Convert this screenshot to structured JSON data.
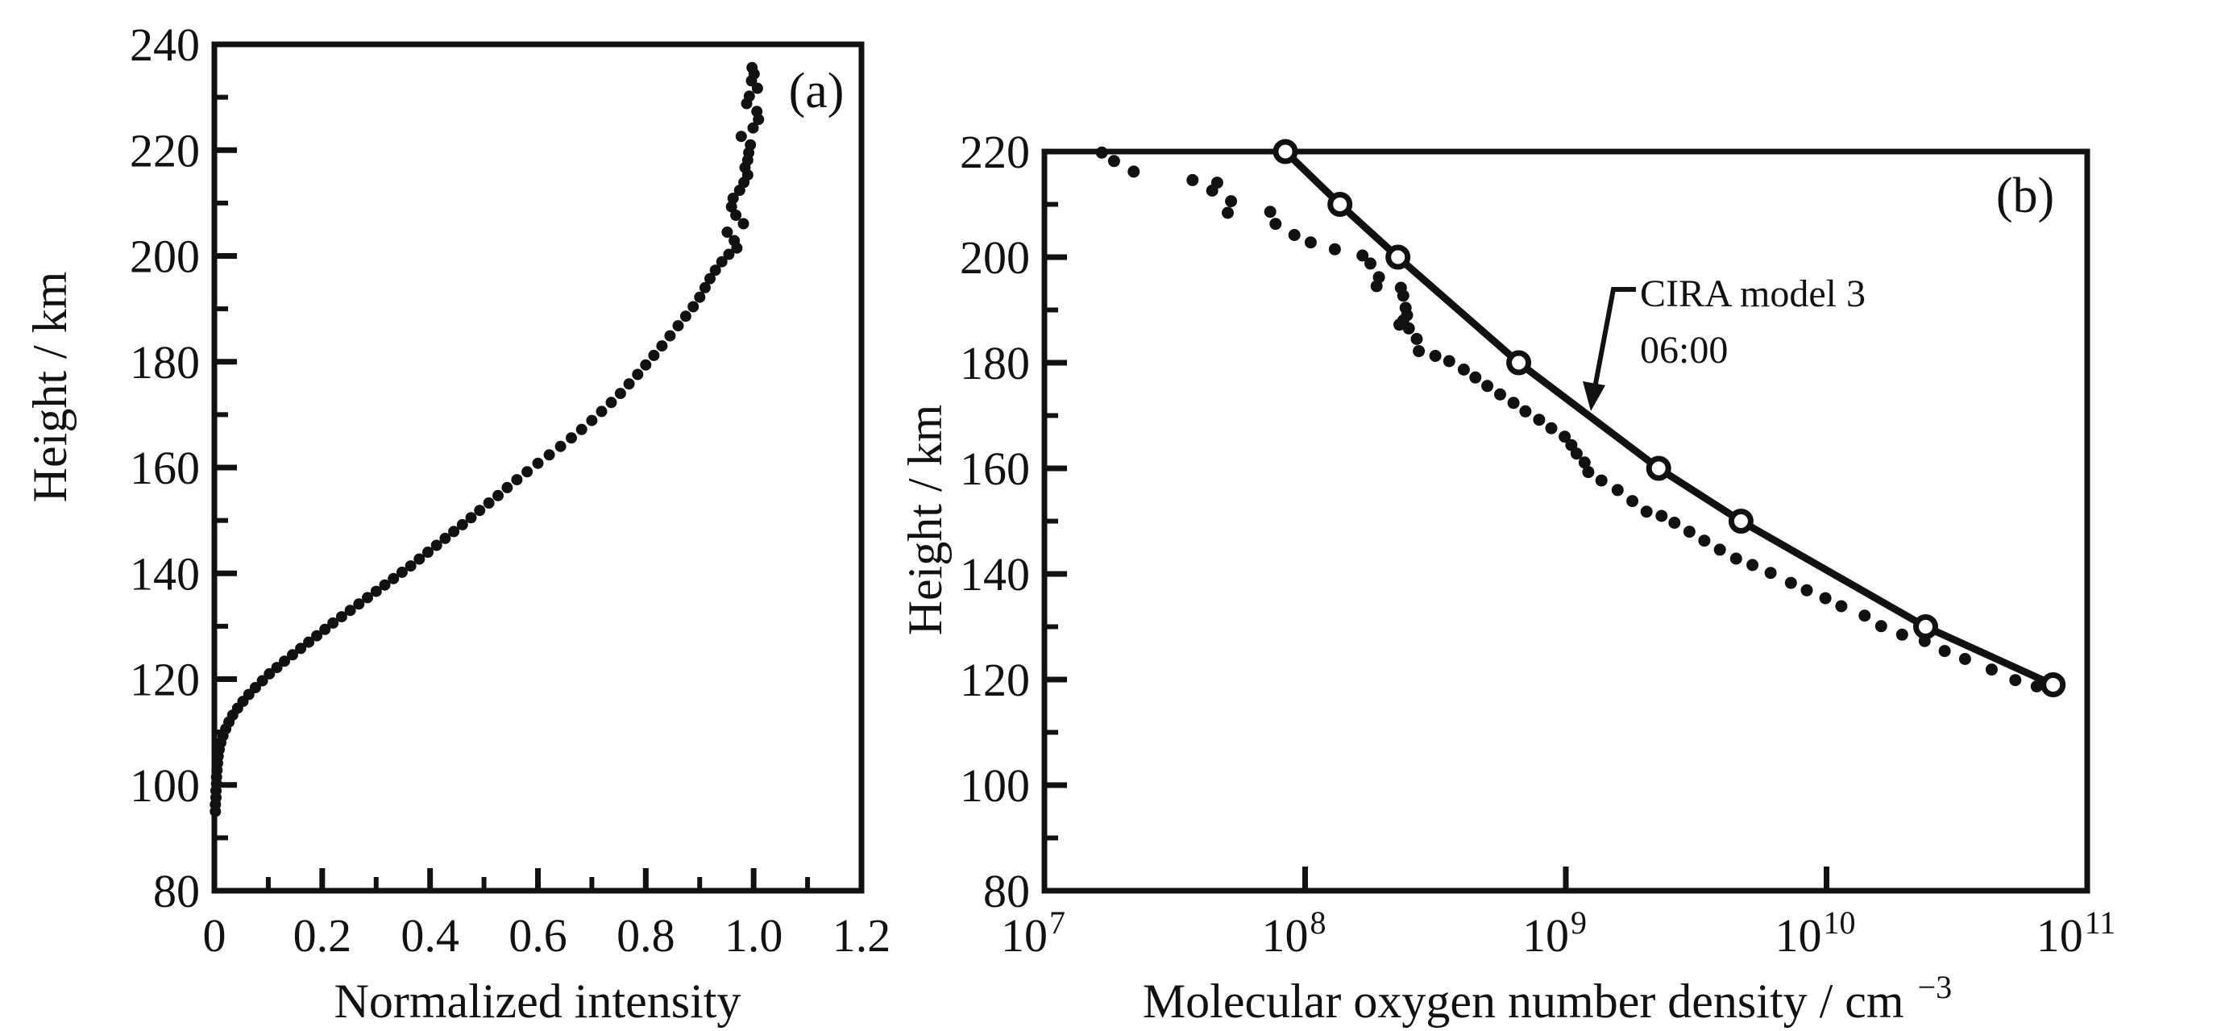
{
  "figure": {
    "background": "#ffffff",
    "ink": "#111111",
    "panel_a_label": "(a)",
    "panel_b_label": "(b)"
  },
  "chart_data": [
    {
      "type": "scatter",
      "title": "(a)",
      "xlabel": "Normalized intensity",
      "ylabel": "Height / km",
      "xlim": [
        0,
        1.2
      ],
      "ylim": [
        80,
        240
      ],
      "grid": false,
      "x_major_ticks": [
        0,
        0.2,
        0.4,
        0.6,
        0.8,
        1.0,
        1.2
      ],
      "x_tick_labels": [
        "0",
        "0.2",
        "0.4",
        "0.6",
        "0.8",
        "1.0",
        "1.2"
      ],
      "x_minor_ticks": [
        0.1,
        0.3,
        0.5,
        0.7,
        0.9,
        1.1
      ],
      "y_major_ticks": [
        80,
        100,
        120,
        140,
        160,
        180,
        200,
        220,
        240
      ],
      "y_tick_labels": [
        "80",
        "100",
        "120",
        "140",
        "160",
        "180",
        "200",
        "220",
        "240"
      ],
      "y_minor_ticks": [
        90,
        110,
        130,
        150,
        170,
        190,
        210,
        230
      ],
      "points_format": "[normalized_intensity, height_km]",
      "points": [
        [
          0.002,
          95
        ],
        [
          0.002,
          96.3
        ],
        [
          0.003,
          97.6
        ],
        [
          0.003,
          98.9
        ],
        [
          0.004,
          100.2
        ],
        [
          0.004,
          101.5
        ],
        [
          0.005,
          102.8
        ],
        [
          0.006,
          104.1
        ],
        [
          0.007,
          105.4
        ],
        [
          0.009,
          106.7
        ],
        [
          0.012,
          108
        ],
        [
          0.016,
          109.3
        ],
        [
          0.021,
          110.6
        ],
        [
          0.027,
          111.9
        ],
        [
          0.034,
          113.2
        ],
        [
          0.043,
          114.5
        ],
        [
          0.053,
          115.8
        ],
        [
          0.064,
          117.1
        ],
        [
          0.076,
          118.4
        ],
        [
          0.089,
          119.7
        ],
        [
          0.102,
          121
        ],
        [
          0.116,
          122.2
        ],
        [
          0.13,
          123.4
        ],
        [
          0.145,
          124.6
        ],
        [
          0.16,
          125.8
        ],
        [
          0.175,
          127
        ],
        [
          0.19,
          128.2
        ],
        [
          0.205,
          129.4
        ],
        [
          0.22,
          130.6
        ],
        [
          0.236,
          131.8
        ],
        [
          0.252,
          133
        ],
        [
          0.268,
          134.2
        ],
        [
          0.284,
          135.4
        ],
        [
          0.3,
          136.6
        ],
        [
          0.316,
          137.8
        ],
        [
          0.332,
          139
        ],
        [
          0.348,
          140.2
        ],
        [
          0.364,
          141.4
        ],
        [
          0.38,
          142.7
        ],
        [
          0.396,
          144
        ],
        [
          0.412,
          145.3
        ],
        [
          0.428,
          146.6
        ],
        [
          0.444,
          147.9
        ],
        [
          0.46,
          149.2
        ],
        [
          0.476,
          150.5
        ],
        [
          0.492,
          151.9
        ],
        [
          0.509,
          153.3
        ],
        [
          0.526,
          154.7
        ],
        [
          0.543,
          156.2
        ],
        [
          0.561,
          157.7
        ],
        [
          0.58,
          159.2
        ],
        [
          0.6,
          160.8
        ],
        [
          0.621,
          162.4
        ],
        [
          0.642,
          164
        ],
        [
          0.662,
          165.6
        ],
        [
          0.681,
          167.2
        ],
        [
          0.7,
          168.9
        ],
        [
          0.718,
          170.6
        ],
        [
          0.736,
          172.3
        ],
        [
          0.753,
          174
        ],
        [
          0.769,
          175.8
        ],
        [
          0.785,
          177.6
        ],
        [
          0.8,
          179.4
        ],
        [
          0.815,
          181.2
        ],
        [
          0.83,
          183
        ],
        [
          0.845,
          184.9
        ],
        [
          0.86,
          186.8
        ],
        [
          0.874,
          188.6
        ],
        [
          0.888,
          190.4
        ],
        [
          0.9,
          192.2
        ],
        [
          0.91,
          194
        ],
        [
          0.919,
          195.7
        ],
        [
          0.929,
          197.3
        ],
        [
          0.941,
          198.9
        ],
        [
          0.954,
          200.3
        ],
        [
          0.969,
          201.5
        ],
        [
          0.964,
          202.9
        ],
        [
          0.951,
          204.5
        ],
        [
          0.981,
          206.1
        ],
        [
          0.967,
          207.7
        ],
        [
          0.959,
          209.3
        ],
        [
          0.962,
          210.9
        ],
        [
          0.974,
          212.4
        ],
        [
          0.982,
          213.9
        ],
        [
          0.989,
          215.3
        ],
        [
          0.984,
          216.7
        ],
        [
          0.989,
          218.1
        ],
        [
          0.991,
          219.5
        ],
        [
          0.994,
          221
        ],
        [
          0.977,
          222.6
        ],
        [
          0.999,
          224.2
        ],
        [
          1.009,
          225.8
        ],
        [
          1.006,
          227.3
        ],
        [
          0.987,
          228.8
        ],
        [
          0.992,
          230.2
        ],
        [
          1.007,
          231.7
        ],
        [
          0.996,
          233.1
        ],
        [
          1.001,
          234.4
        ],
        [
          0.997,
          235.6
        ]
      ]
    },
    {
      "type": "scatter+line",
      "title": "(b)",
      "xlabel_base": "Molecular oxygen number density / cm",
      "xlabel_sup": "−3",
      "ylabel": "Height / km",
      "x_scale": "log10",
      "x_log_range": [
        7,
        11
      ],
      "x_tick_base": "10",
      "x_tick_exponents": [
        "7",
        "8",
        "9",
        "10",
        "11"
      ],
      "ylim": [
        80,
        220
      ],
      "grid": false,
      "y_major_ticks": [
        80,
        100,
        120,
        140,
        160,
        180,
        200,
        220
      ],
      "y_tick_labels": [
        "80",
        "100",
        "120",
        "140",
        "160",
        "180",
        "200",
        "220"
      ],
      "y_minor_ticks": [
        90,
        110,
        130,
        150,
        170,
        190,
        210
      ],
      "annotation": {
        "line1": "CIRA model 3",
        "line2": "06:00"
      },
      "scatter_format": "[density_cm3, height_km]",
      "scatter": [
        [
          16600000.0,
          219.8
        ],
        [
          18500000.0,
          218.2
        ],
        [
          22000000.0,
          216.2
        ],
        [
          37000000.0,
          214.6
        ],
        [
          46000000.0,
          214.1
        ],
        [
          44000000.0,
          212.6
        ],
        [
          52000000.0,
          210.6
        ],
        [
          50500000.0,
          208.4
        ],
        [
          73500000.0,
          208.6
        ],
        [
          77000000.0,
          206.3
        ],
        [
          91000000.0,
          204.2
        ],
        [
          105000000.0,
          202.8
        ],
        [
          130000000.0,
          201.5
        ],
        [
          166000000.0,
          200.3
        ],
        [
          178000000.0,
          198.8
        ],
        [
          192000000.0,
          196.2
        ],
        [
          188000000.0,
          194.5
        ],
        [
          233000000.0,
          194.2
        ],
        [
          238000000.0,
          192.7
        ],
        [
          243000000.0,
          190.4
        ],
        [
          246000000.0,
          189.0
        ],
        [
          238000000.0,
          188.0
        ],
        [
          230000000.0,
          187.2
        ],
        [
          250000000.0,
          186.5
        ],
        [
          268000000.0,
          184.5
        ],
        [
          273000000.0,
          182.2
        ],
        [
          316000000.0,
          181.3
        ],
        [
          357000000.0,
          180.3
        ],
        [
          406000000.0,
          178.7
        ],
        [
          450000000.0,
          177.2
        ],
        [
          500000000.0,
          175.6
        ],
        [
          560000000.0,
          174.0
        ],
        [
          630000000.0,
          172.4
        ],
        [
          700000000.0,
          170.8
        ],
        [
          790000000.0,
          169.2
        ],
        [
          880000000.0,
          167.6
        ],
        [
          990000000.0,
          166.0
        ],
        [
          1050000000.0,
          164.4
        ],
        [
          1100000000.0,
          162.8
        ],
        [
          1180000000.0,
          161.1
        ],
        [
          1220000000.0,
          159.3
        ],
        [
          1370000000.0,
          157.7
        ],
        [
          1580000000.0,
          155.9
        ],
        [
          1800000000.0,
          153.8
        ],
        [
          2040000000.0,
          151.8
        ],
        [
          2330000000.0,
          151.0
        ],
        [
          2610000000.0,
          149.7
        ],
        [
          2980000000.0,
          148.0
        ],
        [
          3400000000.0,
          146.3
        ],
        [
          3900000000.0,
          144.6
        ],
        [
          4500000000.0,
          142.9
        ],
        [
          5200000000.0,
          141.7
        ],
        [
          6100000000.0,
          140.2
        ],
        [
          7300000000.0,
          138.3
        ],
        [
          8400000000.0,
          136.9
        ],
        [
          9900000000.0,
          135.4
        ],
        [
          11400000000.0,
          133.9
        ],
        [
          14000000000.0,
          132.1
        ],
        [
          16200000000.0,
          130.1
        ],
        [
          19500000000.0,
          128.5
        ],
        [
          23800000000.0,
          127.3
        ],
        [
          28400000000.0,
          125.4
        ],
        [
          34000000000.0,
          123.9
        ],
        [
          43000000000.0,
          121.9
        ],
        [
          53000000000.0,
          119.9
        ],
        [
          64000000000.0,
          118.7
        ]
      ],
      "model_series": {
        "name": "CIRA model 3 06:00",
        "points_format": "[density_cm3, height_km]",
        "points": [
          [
            84000000.0,
            220
          ],
          [
            136000000.0,
            210
          ],
          [
            227000000.0,
            200
          ],
          [
            660000000.0,
            180
          ],
          [
            2270000000.0,
            160
          ],
          [
            4700000000.0,
            150
          ],
          [
            24000000000.0,
            130
          ],
          [
            74000000000.0,
            119
          ]
        ]
      }
    }
  ]
}
